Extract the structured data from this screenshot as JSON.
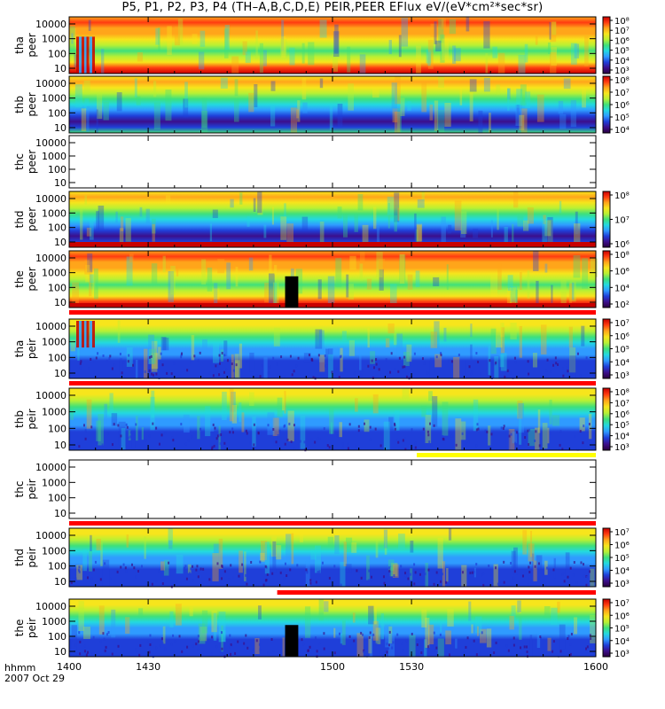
{
  "title": "P5, P1, P2, P3, P4 (TH–A,B,C,D,E) PEIR,PEER EFlux eV/(eV*cm²*sec*sr)",
  "footer": {
    "hhmm_label": "hhmm",
    "date_label": "2007 Oct 29"
  },
  "colors": {
    "palette": [
      "#2a003f",
      "#3b0f8c",
      "#1f3fd9",
      "#2f9bff",
      "#23d9e0",
      "#3fe07a",
      "#b8f034",
      "#f7e51c",
      "#ffa51a",
      "#ff3b10",
      "#c80000",
      "#000000"
    ],
    "no_data_bar": "#ff0000",
    "secondary_bar": "#ffff00",
    "eclipse_bar": "#000000"
  },
  "chart_data": {
    "type": "heatmap",
    "x_axis": {
      "range": [
        1400,
        1600
      ],
      "tick_values": [
        1400,
        1430,
        1500,
        1530,
        1600
      ],
      "tick_labels": [
        "1400",
        "1430",
        "1500",
        "1530",
        "1600"
      ],
      "label": "hhmm"
    },
    "y_axis": {
      "scale": "log",
      "tick_labels": [
        "10",
        "100",
        "1000",
        "10000"
      ]
    },
    "panels": [
      {
        "id": "tha_peer",
        "ylabel_1": "tha",
        "ylabel_2": "peer",
        "species": "electron",
        "cbar_ticks": [
          "10³",
          "10⁴",
          "10⁵",
          "10⁶",
          "10⁷",
          "10⁸"
        ],
        "has_colorbar": true,
        "data": true
      },
      {
        "id": "thb_peer",
        "ylabel_1": "thb",
        "ylabel_2": "peer",
        "species": "electron",
        "cbar_ticks": [
          "10⁴",
          "10⁵",
          "10⁶",
          "10⁷",
          "10⁸"
        ],
        "has_colorbar": true,
        "data": true
      },
      {
        "id": "thc_peer",
        "ylabel_1": "thc",
        "ylabel_2": "peer",
        "species": "electron",
        "cbar_ticks": [],
        "has_colorbar": false,
        "data": false
      },
      {
        "id": "thd_peer",
        "ylabel_1": "thd",
        "ylabel_2": "peer",
        "species": "electron",
        "cbar_ticks": [
          "10⁶",
          "10⁷",
          "10⁸"
        ],
        "has_colorbar": true,
        "data": true
      },
      {
        "id": "the_peer",
        "ylabel_1": "the",
        "ylabel_2": "peer",
        "species": "electron",
        "cbar_ticks": [
          "10²",
          "10⁴",
          "10⁶",
          "10⁸"
        ],
        "has_colorbar": true,
        "data": true
      },
      {
        "id": "tha_peir",
        "ylabel_1": "tha",
        "ylabel_2": "peir",
        "species": "ion",
        "cbar_ticks": [
          "10³",
          "10⁴",
          "10⁵",
          "10⁶",
          "10⁷"
        ],
        "has_colorbar": true,
        "data": true
      },
      {
        "id": "thb_peir",
        "ylabel_1": "thb",
        "ylabel_2": "peir",
        "species": "ion",
        "cbar_ticks": [
          "10³",
          "10⁴",
          "10⁵",
          "10⁶",
          "10⁷",
          "10⁸"
        ],
        "has_colorbar": true,
        "data": true
      },
      {
        "id": "thc_peir",
        "ylabel_1": "thc",
        "ylabel_2": "peir",
        "species": "ion",
        "cbar_ticks": [],
        "has_colorbar": false,
        "data": false
      },
      {
        "id": "thd_peir",
        "ylabel_1": "thd",
        "ylabel_2": "peir",
        "species": "ion",
        "cbar_ticks": [
          "10³",
          "10⁴",
          "10⁵",
          "10⁶",
          "10⁷"
        ],
        "has_colorbar": true,
        "data": true
      },
      {
        "id": "the_peir",
        "ylabel_1": "the",
        "ylabel_2": "peir",
        "species": "ion",
        "cbar_ticks": [
          "10³",
          "10⁴",
          "10⁵",
          "10⁶",
          "10⁷"
        ],
        "has_colorbar": true,
        "data": true
      }
    ],
    "status_bars": [
      {
        "after_panel": "the_peer",
        "color": "red",
        "x_range": [
          1400,
          1600
        ]
      },
      {
        "after_panel": "tha_peir",
        "color": "red",
        "x_range": [
          1400,
          1600
        ]
      },
      {
        "after_panel": "thb_peir",
        "color": "yellow",
        "x_range": [
          1532,
          1600
        ]
      },
      {
        "after_panel": "thc_peir",
        "color": "red",
        "x_range": [
          1400,
          1600
        ]
      },
      {
        "after_panel": "thd_peir",
        "color": "red",
        "x_range": [
          1479,
          1600
        ]
      }
    ],
    "data_gaps": [
      {
        "panel": "the_peer",
        "x_range": [
          1482,
          1487
        ],
        "color": "black"
      },
      {
        "panel": "the_peir",
        "x_range": [
          1482,
          1487
        ],
        "color": "black"
      }
    ]
  }
}
